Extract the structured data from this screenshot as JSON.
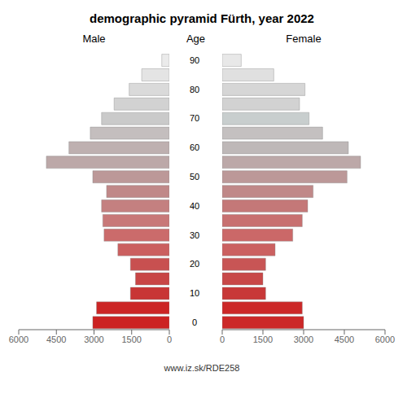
{
  "chart_data": {
    "type": "bar",
    "orientation": "horizontal",
    "title": "demographic pyramid Fürth, year 2022",
    "ylabel": "Age",
    "annotations": [
      "www.iz.sk/RDE258"
    ],
    "categories": [
      "0",
      null,
      "10",
      null,
      "20",
      null,
      "30",
      null,
      "40",
      null,
      "50",
      null,
      "60",
      null,
      "70",
      null,
      "80",
      null,
      "90"
    ],
    "series": [
      {
        "name": "Male",
        "colors": [
          "#cc2222",
          "#cc2525",
          "#c83535",
          "#c84545",
          "#c85050",
          "#cb5f5f",
          "#cb6b6b",
          "#c87878",
          "#c48080",
          "#c08888",
          "#bc9898",
          "#bca8a8",
          "#beb0b0",
          "#c4bebe",
          "#cacaca",
          "#d2d2d2",
          "#dadada",
          "#e4e4e4",
          "#ebebeb"
        ],
        "values": [
          3050,
          2900,
          1550,
          1350,
          1550,
          2050,
          2600,
          2650,
          2700,
          2500,
          3050,
          4900,
          4000,
          3150,
          2700,
          2200,
          1600,
          1100,
          300
        ]
      },
      {
        "name": "Female",
        "colors": [
          "#cc2828",
          "#cc2828",
          "#c83838",
          "#c84848",
          "#c85555",
          "#cb6060",
          "#cb6868",
          "#c87070",
          "#c47878",
          "#c08888",
          "#bc9898",
          "#bca8a8",
          "#beb8b8",
          "#c4c0c0",
          "#c8cece",
          "#d2d2d2",
          "#d6d6d6",
          "#e0e0e0",
          "#e8e8e8"
        ],
        "values": [
          3000,
          2950,
          1600,
          1500,
          1600,
          1950,
          2600,
          2950,
          3150,
          3350,
          4600,
          5100,
          4650,
          3700,
          3200,
          2850,
          3050,
          1900,
          700
        ]
      }
    ],
    "xlim": [
      0,
      6000
    ],
    "xticks": [
      0,
      1500,
      3000,
      4500,
      6000
    ],
    "grid": false
  }
}
